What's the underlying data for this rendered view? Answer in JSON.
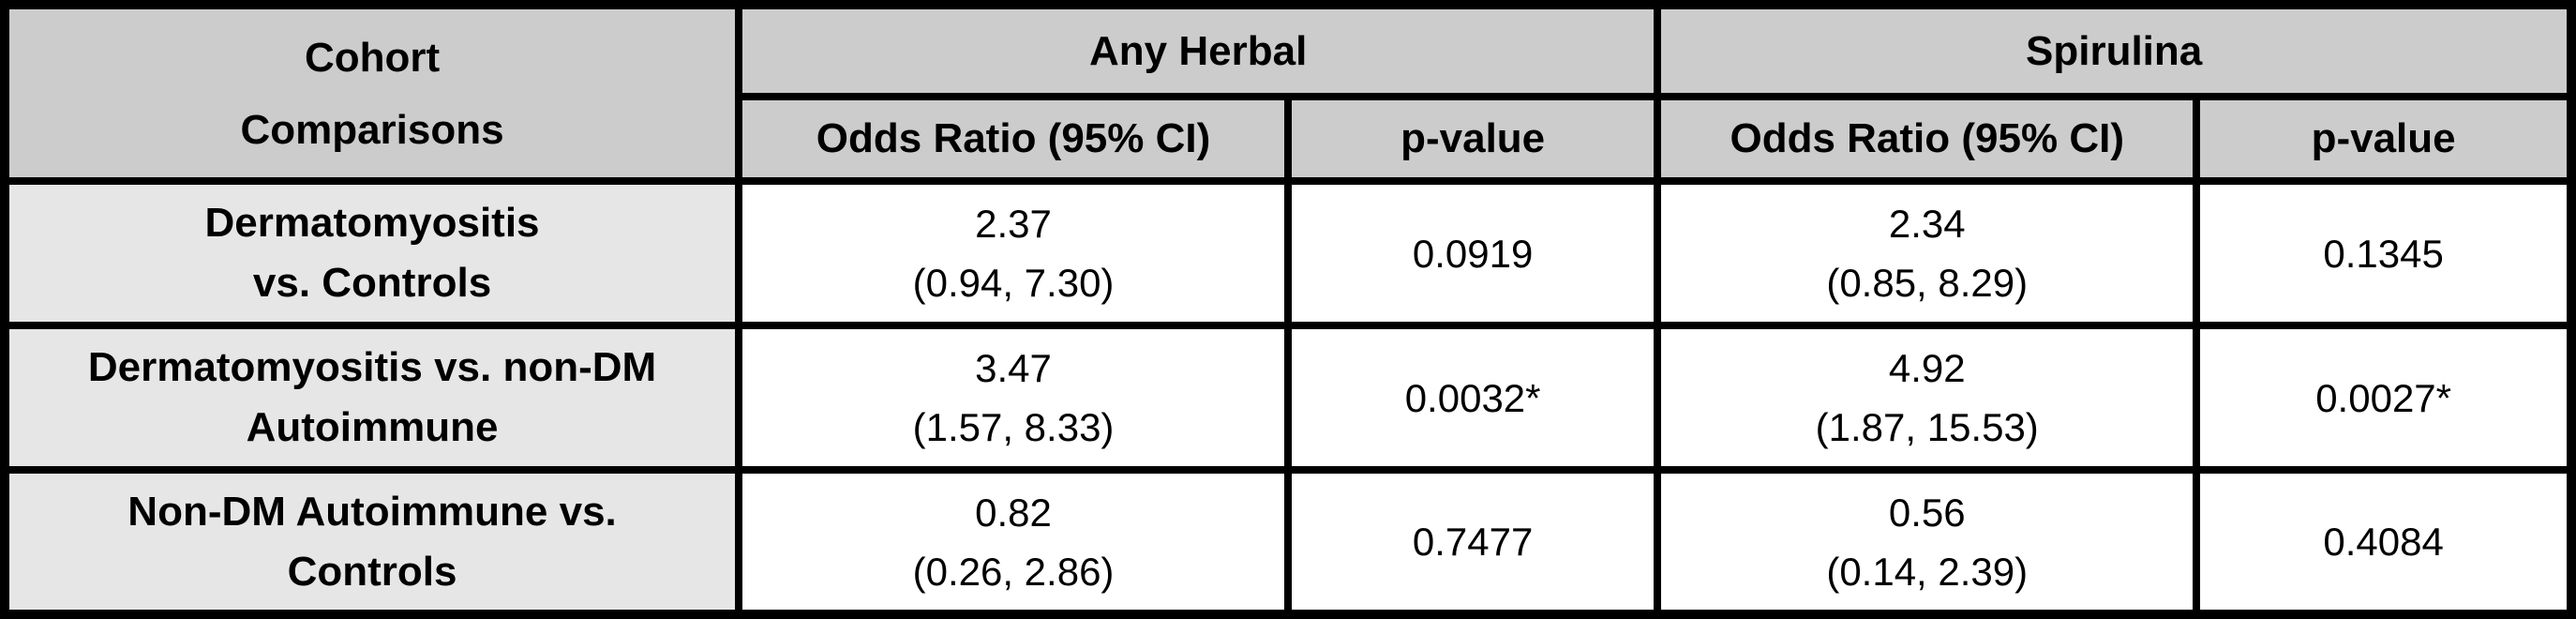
{
  "table": {
    "corner_header": {
      "line1": "Cohort",
      "line2": "Comparisons"
    },
    "groups": [
      {
        "label": "Any Herbal",
        "odds_header": "Odds Ratio (95% CI)",
        "p_header": "p-value"
      },
      {
        "label": "Spirulina",
        "odds_header": "Odds Ratio (95% CI)",
        "p_header": "p-value"
      }
    ],
    "rows": [
      {
        "label_line1": "Dermatomyositis",
        "label_line2": "vs. Controls",
        "any_herbal_or": "2.37",
        "any_herbal_ci": "(0.94, 7.30)",
        "any_herbal_p": "0.0919",
        "spirulina_or": "2.34",
        "spirulina_ci": "(0.85, 8.29)",
        "spirulina_p": "0.1345"
      },
      {
        "label_line1": "Dermatomyositis vs. non-DM",
        "label_line2": "Autoimmune",
        "any_herbal_or": "3.47",
        "any_herbal_ci": "(1.57, 8.33)",
        "any_herbal_p": "0.0032*",
        "spirulina_or": "4.92",
        "spirulina_ci": "(1.87, 15.53)",
        "spirulina_p": "0.0027*"
      },
      {
        "label_line1": "Non-DM Autoimmune vs.",
        "label_line2": "Controls",
        "any_herbal_or": "0.82",
        "any_herbal_ci": "(0.26, 2.86)",
        "any_herbal_p": "0.7477",
        "spirulina_or": "0.56",
        "spirulina_ci": "(0.14, 2.39)",
        "spirulina_p": "0.4084"
      }
    ]
  },
  "colors": {
    "header_bg": "#cccccc",
    "row_label_bg": "#e6e6e6",
    "data_cell_bg": "#ffffff",
    "border": "#000000",
    "text": "#000000"
  },
  "chart_data": {
    "type": "table",
    "columns": [
      "Cohort Comparisons",
      "Any Herbal Odds Ratio (95% CI)",
      "Any Herbal p-value",
      "Spirulina Odds Ratio (95% CI)",
      "Spirulina p-value"
    ],
    "rows": [
      [
        "Dermatomyositis vs. Controls",
        "2.37 (0.94, 7.30)",
        "0.0919",
        "2.34 (0.85, 8.29)",
        "0.1345"
      ],
      [
        "Dermatomyositis vs. non-DM Autoimmune",
        "3.47 (1.57, 8.33)",
        "0.0032*",
        "4.92 (1.87, 15.53)",
        "0.0027*"
      ],
      [
        "Non-DM Autoimmune vs. Controls",
        "0.82 (0.26, 2.86)",
        "0.7477",
        "0.56 (0.14, 2.39)",
        "0.4084"
      ]
    ]
  }
}
